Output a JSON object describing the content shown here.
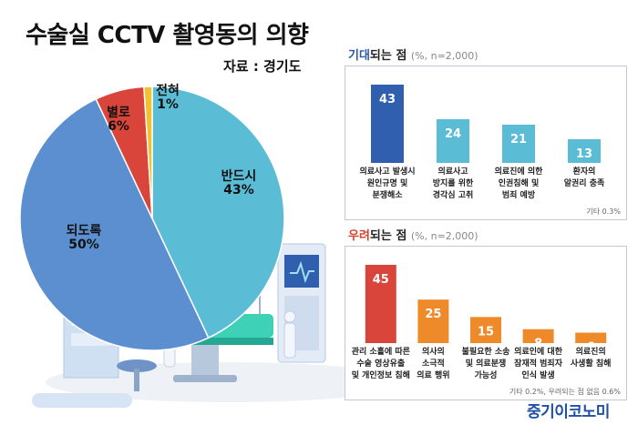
{
  "title": "수술실 CCTV 촬영동의 의향",
  "source": "자료 : 경기도",
  "brand": "중기이코노미",
  "chart_data": [
    {
      "type": "pie",
      "categories": [
        "반드시",
        "되도록",
        "별로",
        "전혀"
      ],
      "values": [
        43,
        50,
        6,
        1
      ],
      "value_labels": [
        "43%",
        "50%",
        "6%",
        "1%"
      ],
      "colors": [
        "#5bbcd6",
        "#5b8fd0",
        "#d9453a",
        "#f2c12e"
      ]
    },
    {
      "type": "bar",
      "title_highlight": "기대",
      "title_rest": "되는 점",
      "subtitle": "(%, n=2,000)",
      "categories": [
        "의료사고 발생시\n원인규명 및\n분쟁해소",
        "의료사고\n방지를 위한\n경각심 고취",
        "의료진에 의한\n인권침해 및\n범죄 예방",
        "환자의\n알권리 충족"
      ],
      "values": [
        43,
        24,
        21,
        13
      ],
      "note": "기타 0.3%",
      "colors": [
        "#2f5fae",
        "#5bbcd6",
        "#5bbcd6",
        "#5bbcd6"
      ]
    },
    {
      "type": "bar",
      "title_highlight": "우려",
      "title_rest": "되는 점",
      "subtitle": "(%, n=2,000)",
      "categories": [
        "관리 소홀에 따른\n수술 영상유출\n및 개인정보 침해",
        "의사의\n소극적\n의료 행위",
        "불필요한 소송\n및 의료분쟁\n가능성",
        "의료인에 대한\n잠재적 범죄자\n인식 발생",
        "의료진의\n사생활 침해"
      ],
      "values": [
        45,
        25,
        15,
        8,
        6
      ],
      "note": "기타 0.2%, 우려되는 점 없음 0.6%",
      "colors": [
        "#d9453a",
        "#ef8a2b",
        "#ef8a2b",
        "#ef8a2b",
        "#ef8a2b"
      ]
    }
  ]
}
